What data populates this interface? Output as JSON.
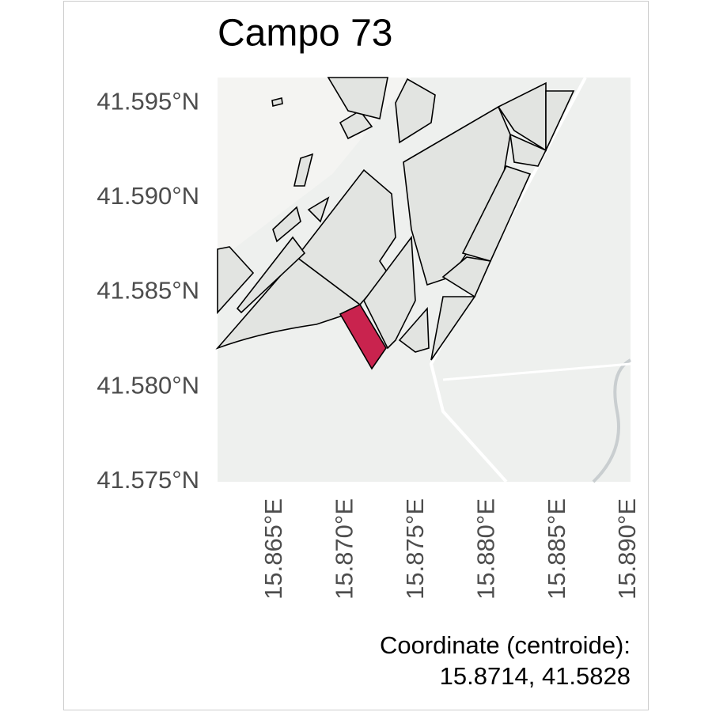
{
  "title": "Campo 73",
  "map": {
    "xlim": [
      15.86092,
      15.89011
    ],
    "ylim": [
      41.575,
      41.59634
    ],
    "yticks": [
      {
        "value": 41.575,
        "label": "41.575°N"
      },
      {
        "value": 41.58,
        "label": "41.580°N"
      },
      {
        "value": 41.585,
        "label": "41.585°N"
      },
      {
        "value": 41.59,
        "label": "41.590°N"
      },
      {
        "value": 41.595,
        "label": "41.595°N"
      }
    ],
    "xticks": [
      {
        "value": 15.865,
        "label": "15.865°E"
      },
      {
        "value": 15.87,
        "label": "15.870°E"
      },
      {
        "value": 15.875,
        "label": "15.875°E"
      },
      {
        "value": 15.88,
        "label": "15.880°E"
      },
      {
        "value": 15.885,
        "label": "15.885°E"
      },
      {
        "value": 15.89,
        "label": "15.890°E"
      }
    ]
  },
  "caption": {
    "line1": "Coordinate (centroide):",
    "line2": "15.8714, 41.5828"
  }
}
